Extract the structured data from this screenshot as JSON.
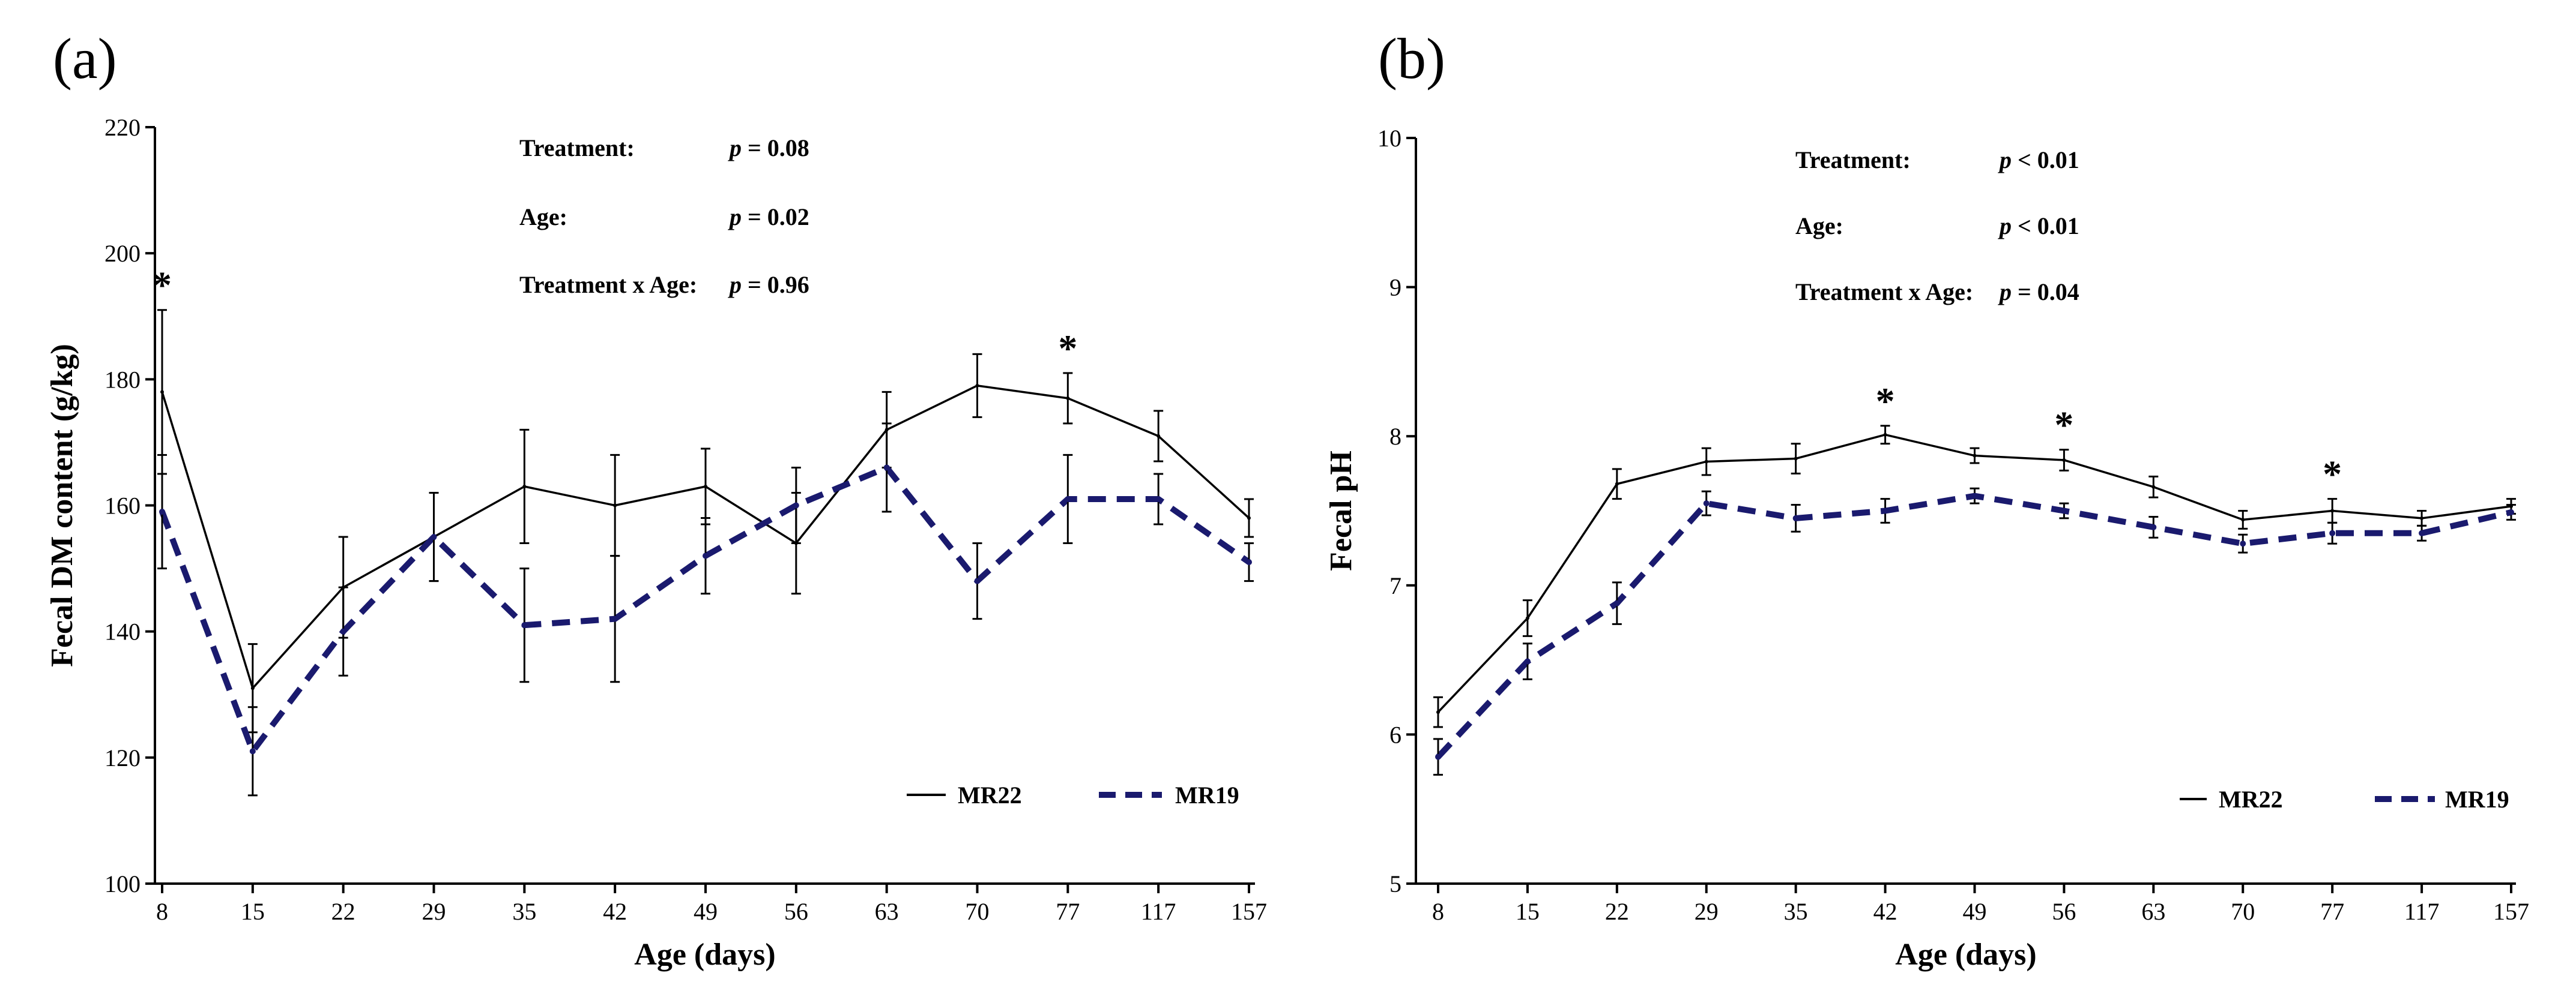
{
  "chart_data": [
    {
      "panel_label": "(a)",
      "type": "line",
      "categories": [
        "8",
        "15",
        "22",
        "29",
        "35",
        "42",
        "49",
        "56",
        "63",
        "70",
        "77",
        "117",
        "157"
      ],
      "xlabel": "Age (days)",
      "ylabel": "Fecal DM content (g/kg)",
      "ylim": [
        100,
        220
      ],
      "yticks": [
        100,
        120,
        140,
        160,
        180,
        200,
        220
      ],
      "series": [
        {
          "name": "MR22",
          "style": "solid",
          "color": "#000000",
          "values": [
            178,
            131,
            147,
            155,
            163,
            160,
            163,
            154,
            172,
            179,
            177,
            171,
            158
          ],
          "errors": [
            13,
            7,
            8,
            7,
            9,
            8,
            6,
            8,
            6,
            5,
            4,
            4,
            3
          ]
        },
        {
          "name": "MR19",
          "style": "dashed",
          "color": "#1a1a6e",
          "values": [
            159,
            121,
            140,
            155,
            141,
            142,
            152,
            160,
            166,
            148,
            161,
            161,
            151
          ],
          "errors": [
            9,
            7,
            7,
            7,
            9,
            10,
            6,
            6,
            7,
            6,
            7,
            4,
            3
          ]
        }
      ],
      "significance_marks": [
        {
          "category": "8",
          "label": "*"
        },
        {
          "category": "77",
          "label": "*"
        }
      ],
      "stats": [
        {
          "label": "Treatment:",
          "value": "p = 0.08"
        },
        {
          "label": "Age:",
          "value": "p = 0.02"
        },
        {
          "label": "Treatment x Age:",
          "value": "p = 0.96"
        }
      ],
      "legend_position": "bottom-right"
    },
    {
      "panel_label": "(b)",
      "type": "line",
      "categories": [
        "8",
        "15",
        "22",
        "29",
        "35",
        "42",
        "49",
        "56",
        "63",
        "70",
        "77",
        "117",
        "157"
      ],
      "xlabel": "Age (days)",
      "ylabel": "Fecal pH",
      "ylim": [
        5,
        10
      ],
      "yticks": [
        5,
        6,
        7,
        8,
        9,
        10
      ],
      "series": [
        {
          "name": "MR22",
          "style": "solid",
          "color": "#000000",
          "values": [
            6.15,
            6.78,
            7.68,
            7.83,
            7.85,
            8.01,
            7.87,
            7.84,
            7.66,
            7.44,
            7.5,
            7.45,
            7.53
          ],
          "errors": [
            0.1,
            0.12,
            0.1,
            0.09,
            0.1,
            0.06,
            0.05,
            0.07,
            0.07,
            0.06,
            0.08,
            0.05,
            0.05
          ]
        },
        {
          "name": "MR19",
          "style": "dashed",
          "color": "#1a1a6e",
          "values": [
            5.85,
            6.49,
            6.88,
            7.55,
            7.45,
            7.5,
            7.6,
            7.5,
            7.39,
            7.28,
            7.35,
            7.35,
            7.49
          ],
          "errors": [
            0.12,
            0.12,
            0.14,
            0.08,
            0.09,
            0.08,
            0.05,
            0.05,
            0.07,
            0.06,
            0.07,
            0.05,
            0.05
          ]
        }
      ],
      "significance_marks": [
        {
          "category": "42",
          "label": "*"
        },
        {
          "category": "56",
          "label": "*"
        },
        {
          "category": "77",
          "label": "*"
        }
      ],
      "stats": [
        {
          "label": "Treatment:",
          "value": "p < 0.01"
        },
        {
          "label": "Age:",
          "value": "p < 0.01"
        },
        {
          "label": "Treatment x Age:",
          "value": "p = 0.04"
        }
      ],
      "legend_position": "bottom-right"
    }
  ]
}
